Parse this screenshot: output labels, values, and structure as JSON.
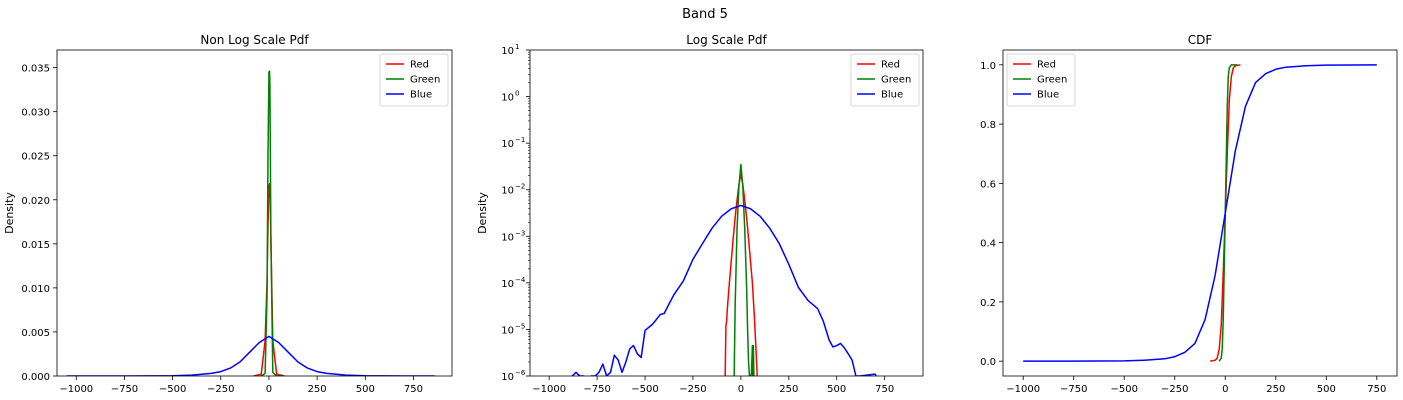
{
  "figure_title": "Band 5",
  "chart_data": [
    {
      "type": "line",
      "title": "Non Log Scale Pdf",
      "xlabel": "",
      "ylabel": "Density",
      "xlim": [
        -1100,
        950
      ],
      "ylim": [
        0,
        0.037
      ],
      "yscale": "linear",
      "xticks": [
        -1000,
        -750,
        -500,
        -250,
        0,
        250,
        500,
        750
      ],
      "xtick_labels": [
        "−1000",
        "−750",
        "−500",
        "−250",
        "0",
        "250",
        "500",
        "750"
      ],
      "yticks": [
        0,
        0.005,
        0.01,
        0.015,
        0.02,
        0.025,
        0.03,
        0.035
      ],
      "ytick_labels": [
        "0.000",
        "0.005",
        "0.010",
        "0.015",
        "0.020",
        "0.025",
        "0.030",
        "0.035"
      ],
      "legend": "upper-right",
      "series": [
        {
          "name": "Red",
          "color": "#ff0000",
          "x": [
            -80,
            -40,
            -20,
            -10,
            -5,
            0,
            3,
            6,
            10,
            20,
            40,
            80
          ],
          "y": [
            0,
            0.0002,
            0.004,
            0.0105,
            0.017,
            0.0215,
            0.0218,
            0.0212,
            0.0155,
            0.004,
            0.0002,
            0
          ]
        },
        {
          "name": "Green",
          "color": "#008000",
          "x": [
            -40,
            -20,
            -10,
            -5,
            0,
            3,
            5,
            10,
            20,
            40,
            65
          ],
          "y": [
            0,
            0.0003,
            0.009,
            0.025,
            0.0345,
            0.0346,
            0.033,
            0.016,
            0.0004,
            0,
            0
          ]
        },
        {
          "name": "Blue",
          "color": "#0000ff",
          "x": [
            -1050,
            -800,
            -600,
            -500,
            -400,
            -300,
            -250,
            -200,
            -150,
            -100,
            -50,
            0,
            50,
            100,
            150,
            200,
            250,
            300,
            400,
            500,
            600,
            700,
            860
          ],
          "y": [
            0,
            0,
            1e-05,
            3e-05,
            0.0001,
            0.0003,
            0.0005,
            0.0009,
            0.0016,
            0.0027,
            0.0038,
            0.0045,
            0.0038,
            0.0027,
            0.0016,
            0.0009,
            0.0005,
            0.0003,
            0.0001,
            3e-05,
            1e-05,
            0,
            0
          ]
        }
      ]
    },
    {
      "type": "line",
      "title": "Log Scale Pdf",
      "xlabel": "",
      "ylabel": "Density",
      "xlim": [
        -1100,
        950
      ],
      "ylim": [
        1e-06,
        10
      ],
      "yscale": "log",
      "xticks": [
        -1000,
        -750,
        -500,
        -250,
        0,
        250,
        500,
        750
      ],
      "xtick_labels": [
        "−1000",
        "−750",
        "−500",
        "−250",
        "0",
        "250",
        "500",
        "750"
      ],
      "yticks": [
        1e-06,
        1e-05,
        0.0001,
        0.001,
        0.01,
        0.1,
        1,
        10
      ],
      "ytick_labels": [
        {
          "base": "10",
          "exp": "−6"
        },
        {
          "base": "10",
          "exp": "−5"
        },
        {
          "base": "10",
          "exp": "−4"
        },
        {
          "base": "10",
          "exp": "−3"
        },
        {
          "base": "10",
          "exp": "−2"
        },
        {
          "base": "10",
          "exp": "−1"
        },
        {
          "base": "10",
          "exp": "0"
        },
        {
          "base": "10",
          "exp": "1"
        }
      ],
      "legend": "upper-right",
      "series": [
        {
          "name": "Red",
          "color": "#ff0000",
          "x": [
            -82,
            -78,
            -75,
            -70,
            -60,
            -50,
            -40,
            -30,
            -20,
            -10,
            0,
            10,
            20,
            30,
            40,
            50,
            60,
            70,
            80,
            85
          ],
          "y": [
            1e-06,
            1.2e-05,
            1.4e-05,
            3e-05,
            0.0001,
            0.0003,
            0.0009,
            0.0025,
            0.006,
            0.013,
            0.0215,
            0.013,
            0.006,
            0.0025,
            0.0009,
            0.0003,
            0.0001,
            2e-05,
            3e-06,
            1e-06
          ]
        },
        {
          "name": "Green",
          "color": "#008000",
          "x": [
            -35,
            -30,
            -20,
            -10,
            0,
            10,
            20,
            30,
            35,
            40,
            45,
            50,
            55,
            60,
            62,
            65,
            68
          ],
          "y": [
            1e-06,
            3e-05,
            0.0015,
            0.012,
            0.035,
            0.012,
            0.0015,
            8e-05,
            1e-05,
            2e-06,
            1e-06,
            1e-06,
            1.1e-06,
            4.5e-06,
            1e-06,
            4.5e-06,
            1e-06
          ]
        },
        {
          "name": "Blue",
          "color": "#0000ff",
          "x": [
            -880,
            -860,
            -840,
            -820,
            -800,
            -780,
            -760,
            -740,
            -720,
            -700,
            -680,
            -660,
            -640,
            -620,
            -600,
            -580,
            -560,
            -540,
            -520,
            -500,
            -460,
            -420,
            -400,
            -380,
            -350,
            -300,
            -250,
            -200,
            -150,
            -100,
            -50,
            0,
            50,
            100,
            150,
            200,
            250,
            300,
            350,
            400,
            430,
            460,
            480,
            500,
            520,
            540,
            560,
            580,
            600,
            620,
            700,
            705
          ],
          "y": [
            1e-06,
            1.2e-06,
            1e-06,
            1e-06,
            9e-07,
            1e-06,
            1e-06,
            1.2e-06,
            1.8e-06,
            1e-06,
            1.2e-06,
            2.8e-06,
            2.2e-06,
            1.2e-06,
            2e-06,
            3.8e-06,
            4.5e-06,
            3e-06,
            2.5e-06,
            9.5e-06,
            1.3e-05,
            2.1e-05,
            2.2e-05,
            3.2e-05,
            5.5e-05,
            0.00011,
            0.00032,
            0.0007,
            0.0015,
            0.0027,
            0.0039,
            0.0046,
            0.0039,
            0.0027,
            0.0015,
            0.0007,
            0.00025,
            8e-05,
            4.2e-05,
            2.8e-05,
            1.5e-05,
            6e-06,
            4.2e-06,
            4.5e-06,
            5e-06,
            4e-06,
            3e-06,
            2.2e-06,
            1e-06,
            1e-06,
            1.1e-06,
            1e-06
          ]
        }
      ]
    },
    {
      "type": "line",
      "title": "CDF",
      "xlabel": "",
      "ylabel": "",
      "xlim": [
        -1100,
        850
      ],
      "ylim": [
        -0.05,
        1.05
      ],
      "yscale": "linear",
      "xticks": [
        -1000,
        -750,
        -500,
        -250,
        0,
        250,
        500,
        750
      ],
      "xtick_labels": [
        "−1000",
        "−750",
        "−500",
        "−250",
        "0",
        "250",
        "500",
        "750"
      ],
      "yticks": [
        0,
        0.2,
        0.4,
        0.6,
        0.8,
        1.0
      ],
      "ytick_labels": [
        "0.0",
        "0.2",
        "0.4",
        "0.6",
        "0.8",
        "1.0"
      ],
      "legend": "upper-left",
      "series": [
        {
          "name": "Red",
          "color": "#ff0000",
          "x": [
            -75,
            -50,
            -40,
            -30,
            -20,
            -10,
            0,
            10,
            20,
            30,
            40,
            50,
            75
          ],
          "y": [
            0,
            0.003,
            0.01,
            0.04,
            0.12,
            0.3,
            0.5,
            0.7,
            0.88,
            0.96,
            0.99,
            0.997,
            1.0
          ]
        },
        {
          "name": "Green",
          "color": "#008000",
          "x": [
            -30,
            -20,
            -15,
            -10,
            -5,
            0,
            5,
            10,
            15,
            20,
            30,
            60
          ],
          "y": [
            0,
            0.01,
            0.04,
            0.14,
            0.32,
            0.5,
            0.68,
            0.86,
            0.96,
            0.99,
            1.0,
            1.0
          ]
        },
        {
          "name": "Blue",
          "color": "#0000ff",
          "x": [
            -1000,
            -750,
            -500,
            -400,
            -300,
            -250,
            -200,
            -150,
            -100,
            -50,
            0,
            50,
            100,
            150,
            200,
            250,
            300,
            400,
            500,
            750
          ],
          "y": [
            0,
            0,
            0.001,
            0.003,
            0.008,
            0.015,
            0.03,
            0.06,
            0.14,
            0.29,
            0.5,
            0.71,
            0.86,
            0.94,
            0.97,
            0.985,
            0.992,
            0.997,
            0.999,
            1.0
          ]
        }
      ]
    }
  ]
}
